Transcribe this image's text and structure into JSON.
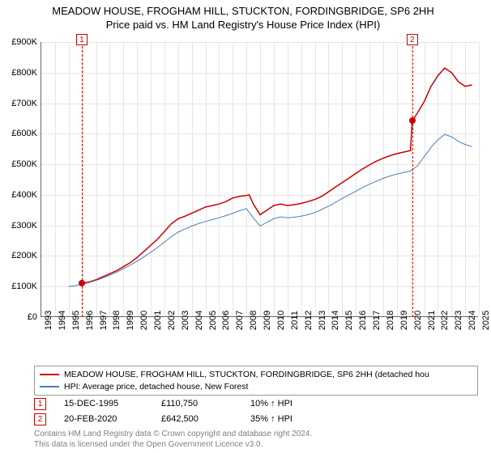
{
  "title": {
    "line1": "MEADOW HOUSE, FROGHAM HILL, STUCKTON, FORDINGBRIDGE, SP6 2HH",
    "line2": "Price paid vs. HM Land Registry's House Price Index (HPI)"
  },
  "chart": {
    "type": "line",
    "background_color": "#ffffff",
    "grid_color": "#e5e5e5",
    "title_fontsize": 13,
    "label_fontsize": 11,
    "x_years": [
      1993,
      1994,
      1995,
      1996,
      1997,
      1998,
      1999,
      2000,
      2001,
      2002,
      2003,
      2004,
      2005,
      2006,
      2007,
      2008,
      2009,
      2010,
      2011,
      2012,
      2013,
      2014,
      2015,
      2016,
      2017,
      2018,
      2019,
      2020,
      2021,
      2022,
      2023,
      2024,
      2025
    ],
    "ylim": [
      0,
      900
    ],
    "ytick_step": 100,
    "ytick_prefix": "£",
    "ytick_suffix": "K",
    "series": [
      {
        "name": "MEADOW HOUSE, FROGHAM HILL, STUCKTON, FORDINGBRIDGE, SP6 2HH (detached house)",
        "color": "#cc0000",
        "line_width": 1.5,
        "x": [
          1995.96,
          1996.5,
          1997,
          1997.5,
          1998,
          1998.5,
          1999,
          1999.5,
          2000,
          2000.5,
          2001,
          2001.5,
          2002,
          2002.5,
          2003,
          2003.5,
          2004,
          2004.5,
          2005,
          2005.5,
          2006,
          2006.5,
          2007,
          2007.5,
          2008,
          2008.2,
          2008.5,
          2009,
          2009.5,
          2010,
          2010.5,
          2011,
          2011.5,
          2012,
          2012.5,
          2013,
          2013.5,
          2014,
          2014.5,
          2015,
          2015.5,
          2016,
          2016.5,
          2017,
          2017.5,
          2018,
          2018.5,
          2019,
          2019.5,
          2020,
          2020.13,
          2020.5,
          2021,
          2021.5,
          2022,
          2022.5,
          2023,
          2023.5,
          2024,
          2024.5
        ],
        "y": [
          111,
          115,
          122,
          132,
          142,
          152,
          165,
          178,
          195,
          215,
          235,
          255,
          280,
          305,
          322,
          330,
          340,
          350,
          360,
          365,
          370,
          378,
          390,
          395,
          398,
          400,
          370,
          335,
          350,
          365,
          370,
          365,
          368,
          372,
          378,
          385,
          395,
          410,
          425,
          440,
          455,
          470,
          485,
          498,
          510,
          520,
          528,
          535,
          540,
          545,
          642,
          668,
          705,
          755,
          790,
          815,
          800,
          770,
          755,
          760
        ]
      },
      {
        "name": "HPI: Average price, detached house, New Forest",
        "color": "#4a7ebb",
        "line_width": 1,
        "x": [
          1995,
          1995.5,
          1996,
          1996.5,
          1997,
          1997.5,
          1998,
          1998.5,
          1999,
          1999.5,
          2000,
          2000.5,
          2001,
          2001.5,
          2002,
          2002.5,
          2003,
          2003.5,
          2004,
          2004.5,
          2005,
          2005.5,
          2006,
          2006.5,
          2007,
          2007.5,
          2008,
          2008.5,
          2009,
          2009.5,
          2010,
          2010.5,
          2011,
          2011.5,
          2012,
          2012.5,
          2013,
          2013.5,
          2014,
          2014.5,
          2015,
          2015.5,
          2016,
          2016.5,
          2017,
          2017.5,
          2018,
          2018.5,
          2019,
          2019.5,
          2020,
          2020.5,
          2021,
          2021.5,
          2022,
          2022.5,
          2023,
          2023.5,
          2024,
          2024.5
        ],
        "y": [
          100,
          103,
          108,
          113,
          120,
          128,
          137,
          147,
          158,
          170,
          183,
          197,
          212,
          228,
          245,
          263,
          278,
          288,
          298,
          306,
          313,
          319,
          325,
          332,
          340,
          348,
          355,
          325,
          298,
          310,
          322,
          328,
          325,
          327,
          330,
          335,
          342,
          352,
          363,
          375,
          388,
          400,
          412,
          424,
          435,
          445,
          454,
          462,
          468,
          473,
          478,
          495,
          525,
          555,
          580,
          598,
          590,
          575,
          565,
          558
        ]
      }
    ],
    "markers": [
      {
        "num": "1",
        "x": 1995.96,
        "y": 111,
        "color": "#cc0000"
      },
      {
        "num": "2",
        "x": 2020.13,
        "y": 642,
        "color": "#cc0000"
      }
    ]
  },
  "legend": {
    "items": [
      {
        "label": "MEADOW HOUSE, FROGHAM HILL, STUCKTON, FORDINGBRIDGE, SP6 2HH (detached hou",
        "color": "#cc0000"
      },
      {
        "label": "HPI: Average price, detached house, New Forest",
        "color": "#4a7ebb"
      }
    ]
  },
  "sales": [
    {
      "num": "1",
      "date": "15-DEC-1995",
      "price": "£110,750",
      "delta": "10% ↑ HPI",
      "color": "#cc0000"
    },
    {
      "num": "2",
      "date": "20-FEB-2020",
      "price": "£642,500",
      "delta": "35% ↑ HPI",
      "color": "#cc0000"
    }
  ],
  "footer": {
    "line1": "Contains HM Land Registry data © Crown copyright and database right 2024.",
    "line2": "This data is licensed under the Open Government Licence v3.0."
  }
}
